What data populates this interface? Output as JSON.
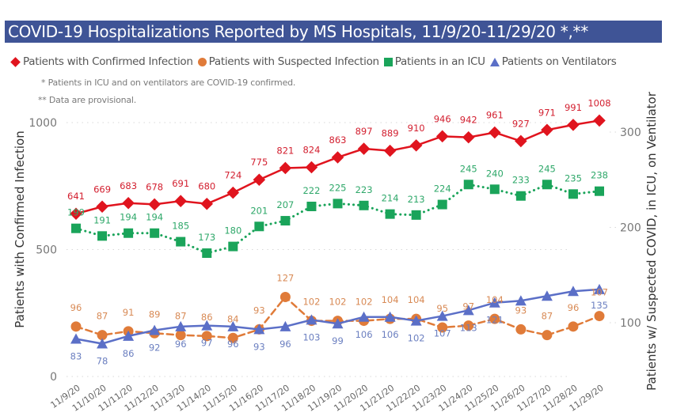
{
  "header": {
    "title": "COVID-19 Hospitalizations Reported by MS Hospitals, 11/9/20-11/29/20 *,**"
  },
  "legend": [
    {
      "label": "Patients with Confirmed Infection",
      "marker": "diamond",
      "color": "#e0141e"
    },
    {
      "label": "Patients with Suspected Infection",
      "marker": "circle",
      "color": "#e07b39"
    },
    {
      "label": "Patients in an ICU",
      "marker": "square",
      "color": "#1aa45a"
    },
    {
      "label": "Patients on Ventilators",
      "marker": "triangle",
      "color": "#5b6fc7"
    }
  ],
  "notes": [
    "* Patients in ICU and on ventilators are COVID-19 confirmed.",
    "** Data are provisional."
  ],
  "chart_data": {
    "type": "line",
    "title": "COVID-19 Hospitalizations Reported by MS Hospitals, 11/9/20-11/29/20 *,**",
    "xlabel": "",
    "ylabel": "Patients with Confirmed Infection",
    "y2label": "Patients w/ Suspected COVID, in ICU, on Ventilator",
    "ylim": [
      0,
      1010
    ],
    "y2lim": [
      44,
      310
    ],
    "yticks": [
      0,
      500,
      1000
    ],
    "y2ticks": [
      100,
      200,
      300
    ],
    "grid": true,
    "legend_position": "top-left",
    "categories": [
      "11/9/20",
      "11/10/20",
      "11/11/20",
      "11/12/20",
      "11/13/20",
      "11/14/20",
      "11/15/20",
      "11/16/20",
      "11/17/20",
      "11/18/20",
      "11/19/20",
      "11/20/20",
      "11/21/20",
      "11/22/20",
      "11/23/20",
      "11/24/20",
      "11/25/20",
      "11/26/20",
      "11/27/20",
      "11/28/20",
      "11/29/20"
    ],
    "series": [
      {
        "name": "Patients with Confirmed Infection",
        "axis": "left",
        "color": "#e0141e",
        "marker": "diamond",
        "style": "solid",
        "values": [
          641,
          669,
          683,
          678,
          691,
          680,
          724,
          775,
          821,
          824,
          863,
          897,
          889,
          910,
          946,
          942,
          961,
          927,
          971,
          991,
          1008
        ]
      },
      {
        "name": "Patients with Suspected Infection",
        "axis": "right",
        "color": "#e07b39",
        "marker": "circle",
        "style": "dashed",
        "values": [
          96,
          87,
          91,
          89,
          87,
          86,
          84,
          93,
          127,
          102,
          102,
          102,
          104,
          104,
          95,
          97,
          104,
          93,
          87,
          96,
          107
        ]
      },
      {
        "name": "Patients in an ICU",
        "axis": "right",
        "color": "#1aa45a",
        "marker": "square",
        "style": "dotted",
        "values": [
          199,
          191,
          194,
          194,
          185,
          173,
          180,
          201,
          207,
          222,
          225,
          223,
          214,
          213,
          224,
          245,
          240,
          233,
          245,
          235,
          238
        ]
      },
      {
        "name": "Patients on Ventilators",
        "axis": "right",
        "color": "#5b6fc7",
        "marker": "triangle",
        "style": "solid",
        "values": [
          83,
          78,
          86,
          92,
          96,
          97,
          96,
          93,
          96,
          103,
          99,
          106,
          106,
          102,
          107,
          113,
          121,
          123,
          128,
          133,
          135
        ]
      }
    ]
  }
}
